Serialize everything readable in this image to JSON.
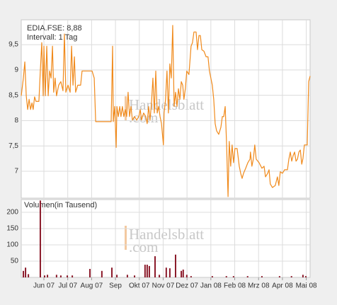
{
  "chart_data": [
    {
      "type": "line",
      "title": "EDIA.FSE: 8,88",
      "subtitle": "Intervall: 1 Tag",
      "color": "#f08a1c",
      "grid": true,
      "watermark": [
        "Handelsblatt",
        ".com"
      ],
      "xlim": [
        5.05,
        17.16
      ],
      "ylim": [
        6.47,
        9.99
      ],
      "yticks": [
        {
          "value": 9.5,
          "label": "9,5"
        },
        9,
        {
          "value": 8.5,
          "label": "8,5"
        },
        8,
        {
          "value": 7.5,
          "label": "7,5"
        },
        7
      ],
      "x": [
        5.05,
        5.14,
        5.2,
        5.26,
        5.32,
        5.38,
        5.44,
        5.5,
        5.55,
        5.61,
        5.67,
        5.79,
        5.85,
        5.91,
        5.97,
        6.0,
        6.06,
        6.12,
        6.18,
        6.24,
        6.3,
        6.36,
        6.41,
        6.47,
        6.53,
        6.62,
        6.71,
        6.8,
        6.86,
        6.92,
        7.01,
        7.1,
        7.16,
        7.22,
        7.28,
        7.33,
        7.42,
        7.54,
        7.6,
        7.81,
        8.02,
        8.11,
        8.17,
        8.46,
        8.82,
        8.88,
        8.91,
        8.97,
        9.03,
        9.06,
        9.12,
        9.18,
        9.23,
        9.29,
        9.35,
        9.41,
        9.47,
        9.53,
        9.59,
        9.65,
        9.71,
        9.8,
        9.89,
        9.98,
        10.04,
        10.09,
        10.18,
        10.27,
        10.33,
        10.39,
        10.45,
        10.51,
        10.57,
        10.63,
        10.69,
        10.75,
        10.81,
        10.87,
        10.93,
        11.01,
        11.04,
        11.1,
        11.16,
        11.22,
        11.28,
        11.34,
        11.4,
        11.46,
        11.52,
        11.58,
        11.64,
        11.7,
        11.76,
        11.82,
        11.87,
        11.93,
        11.99,
        12.08,
        12.17,
        12.23,
        12.29,
        12.38,
        12.44,
        12.5,
        12.56,
        12.62,
        12.71,
        12.8,
        12.88,
        12.94,
        13.0,
        13.06,
        13.12,
        13.18,
        13.24,
        13.33,
        13.42,
        13.48,
        13.54,
        13.6,
        13.66,
        13.72,
        13.77,
        13.83,
        13.89,
        13.95,
        14.01,
        14.1,
        14.19,
        14.25,
        14.31,
        14.37,
        14.46,
        14.55,
        14.64,
        14.66,
        14.72,
        14.78,
        14.84,
        14.9,
        15.02,
        15.14,
        15.23,
        15.29,
        15.38,
        15.44,
        15.49,
        15.58,
        15.7,
        15.79,
        15.85,
        15.91,
        16.0,
        16.09,
        16.21,
        16.27,
        16.33,
        16.39,
        16.45,
        16.51,
        16.57,
        16.63,
        16.69,
        16.75,
        16.81,
        16.86,
        16.92,
        17.04,
        17.1,
        17.16
      ],
      "values": [
        8.49,
        8.84,
        9.16,
        8.49,
        8.22,
        8.42,
        8.22,
        8.35,
        8.22,
        8.47,
        8.38,
        8.38,
        8.98,
        9.54,
        8.49,
        9.47,
        8.49,
        9.47,
        8.49,
        8.98,
        8.84,
        9.47,
        8.56,
        8.84,
        8.49,
        8.7,
        8.77,
        8.59,
        9.71,
        8.56,
        8.7,
        8.56,
        9.47,
        8.7,
        9.26,
        8.56,
        8.7,
        8.7,
        8.98,
        8.98,
        8.98,
        8.84,
        7.98,
        7.98,
        7.98,
        9.47,
        7.98,
        8.28,
        7.47,
        8.28,
        8.08,
        8.28,
        8.08,
        8.28,
        8.08,
        8.22,
        8.08,
        8.56,
        8.08,
        8.28,
        8.01,
        8.08,
        8.01,
        8.08,
        8.22,
        8.01,
        8.15,
        8.08,
        7.94,
        8.28,
        8.01,
        8.35,
        8.84,
        8.15,
        8.98,
        8.15,
        8.28,
        8.08,
        7.94,
        7.52,
        8.15,
        8.42,
        8.98,
        8.15,
        9.12,
        8.84,
        9.88,
        8.28,
        8.56,
        8.28,
        8.63,
        8.42,
        8.77,
        8.7,
        8.42,
        8.63,
        8.98,
        8.91,
        9.47,
        9.54,
        9.75,
        9.75,
        9.4,
        9.68,
        9.68,
        9.4,
        9.37,
        9.26,
        9.26,
        8.98,
        8.84,
        8.7,
        8.42,
        7.94,
        7.8,
        7.73,
        7.87,
        8.08,
        8.08,
        8.28,
        7.52,
        6.5,
        7.59,
        7.1,
        7.52,
        7.17,
        7.45,
        7.45,
        7.1,
        6.96,
        6.86,
        6.96,
        7.06,
        7.17,
        7.24,
        7.38,
        7.1,
        7.24,
        7.52,
        7.24,
        7.17,
        7.06,
        7.1,
        6.89,
        6.96,
        7.03,
        6.75,
        6.68,
        6.72,
        6.89,
        6.72,
        6.99,
        6.96,
        7.03,
        7.03,
        7.24,
        7.38,
        7.2,
        7.31,
        7.38,
        7.2,
        7.24,
        7.38,
        7.42,
        7.14,
        7.25,
        7.52,
        7.52,
        8.77,
        8.88
      ]
    },
    {
      "type": "bar",
      "title": "Volumen(in Tausend)",
      "color": "#8b1a2a",
      "grid": true,
      "watermark": [
        "Handelsblatt",
        ".com"
      ],
      "xlim": [
        5.05,
        17.16
      ],
      "ylim": [
        0,
        239
      ],
      "yticks": [
        200,
        150,
        100,
        50
      ],
      "xticks": [
        {
          "value": 6,
          "label": "Jun 07"
        },
        {
          "value": 7,
          "label": "Jul 07"
        },
        {
          "value": 8,
          "label": "Aug 07"
        },
        {
          "value": 9,
          "label": "Sep"
        },
        {
          "value": 10,
          "label": "Okt 07"
        },
        {
          "value": 11,
          "label": "Nov 07"
        },
        {
          "value": 12,
          "label": "Dez 07"
        },
        {
          "value": 13,
          "label": "Jan 08"
        },
        {
          "value": 14,
          "label": "Feb 08"
        },
        {
          "value": 15,
          "label": "Mrz 08"
        },
        {
          "value": 16,
          "label": "Apr 08"
        },
        {
          "value": 17,
          "label": "Mai 08"
        }
      ],
      "x": [
        5.14,
        5.23,
        5.35,
        5.85,
        6.03,
        6.15,
        6.53,
        6.71,
        6.98,
        7.19,
        7.93,
        8.43,
        8.85,
        9.06,
        9.5,
        9.8,
        10.24,
        10.33,
        10.42,
        10.66,
        10.84,
        11.13,
        11.28,
        11.52,
        11.76,
        11.84,
        11.99,
        12.17,
        13.06,
        13.65,
        13.95,
        14.54,
        15.14,
        15.88,
        16.38,
        16.86,
        16.98
      ],
      "values": [
        20,
        30,
        10,
        236,
        6,
        8,
        8,
        6,
        6,
        6,
        26,
        20,
        30,
        8,
        8,
        6,
        39,
        39,
        35,
        65,
        8,
        30,
        28,
        70,
        20,
        24,
        8,
        4,
        4,
        4,
        4,
        4,
        4,
        4,
        4,
        8,
        4
      ]
    }
  ]
}
